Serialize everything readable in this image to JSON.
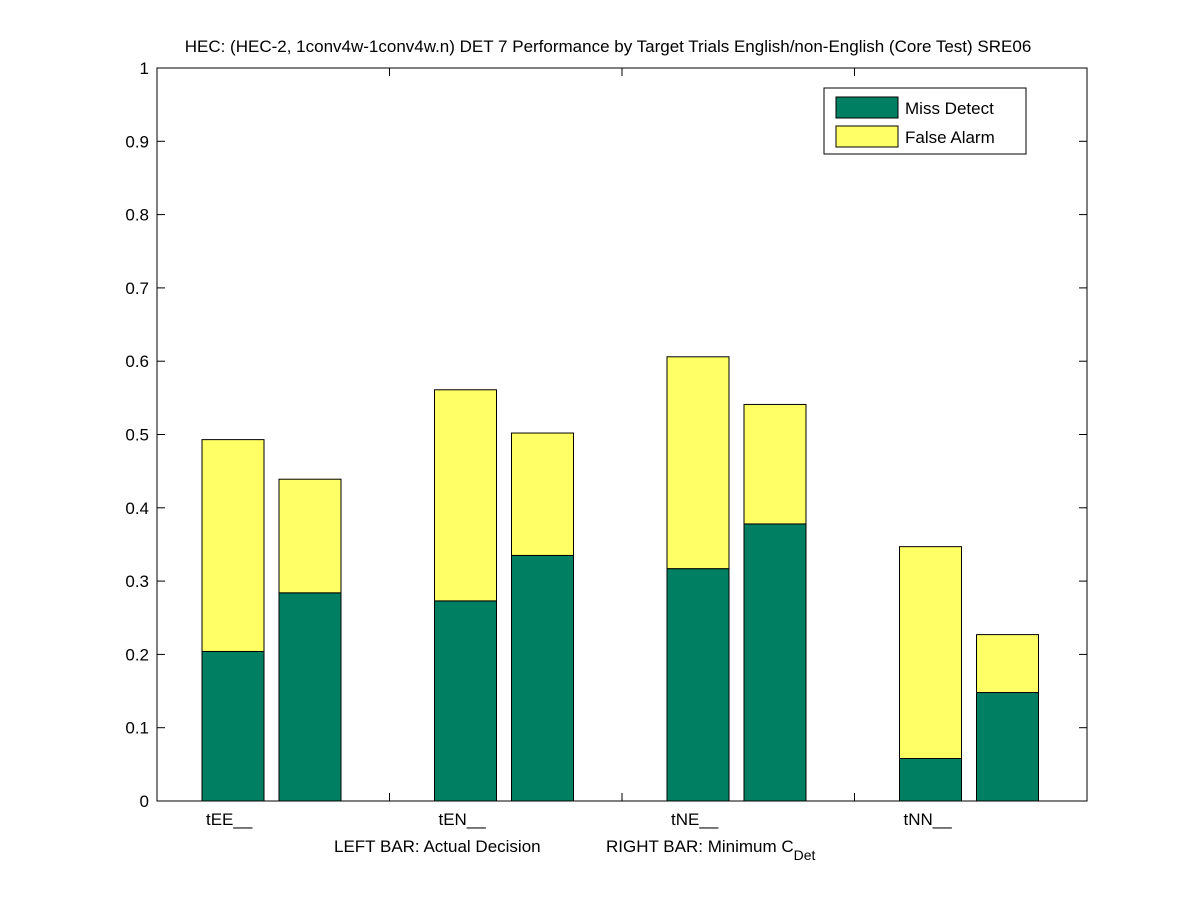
{
  "chart_data": {
    "type": "bar",
    "stacked": true,
    "title": "HEC: (HEC-2, 1conv4w-1conv4w.n) DET 7 Performance by Target Trials English/non-English (Core Test) SRE06",
    "xlabel_left": "LEFT BAR: Actual Decision",
    "xlabel_right_main": "RIGHT BAR: Minimum C",
    "xlabel_right_sub": "Det",
    "ylabel": "",
    "ylim": [
      0,
      1
    ],
    "yticks": [
      "0",
      "0.1",
      "0.2",
      "0.3",
      "0.4",
      "0.5",
      "0.6",
      "0.7",
      "0.8",
      "0.9",
      "1"
    ],
    "categories": [
      "tEE__",
      "tEN__",
      "tNE__",
      "tNN__"
    ],
    "bar_roles": [
      "Actual Decision",
      "Minimum CDet"
    ],
    "series": [
      {
        "name": "Miss Detect",
        "color": "#007f62",
        "actual": [
          0.204,
          0.273,
          0.317,
          0.058
        ],
        "minimum": [
          0.284,
          0.335,
          0.378,
          0.148
        ]
      },
      {
        "name": "False Alarm",
        "color": "#ffff66",
        "actual": [
          0.289,
          0.288,
          0.289,
          0.289
        ],
        "minimum": [
          0.155,
          0.167,
          0.163,
          0.079
        ]
      }
    ],
    "legend": {
      "position": "top-right",
      "entries": [
        "Miss Detect",
        "False Alarm"
      ]
    }
  }
}
